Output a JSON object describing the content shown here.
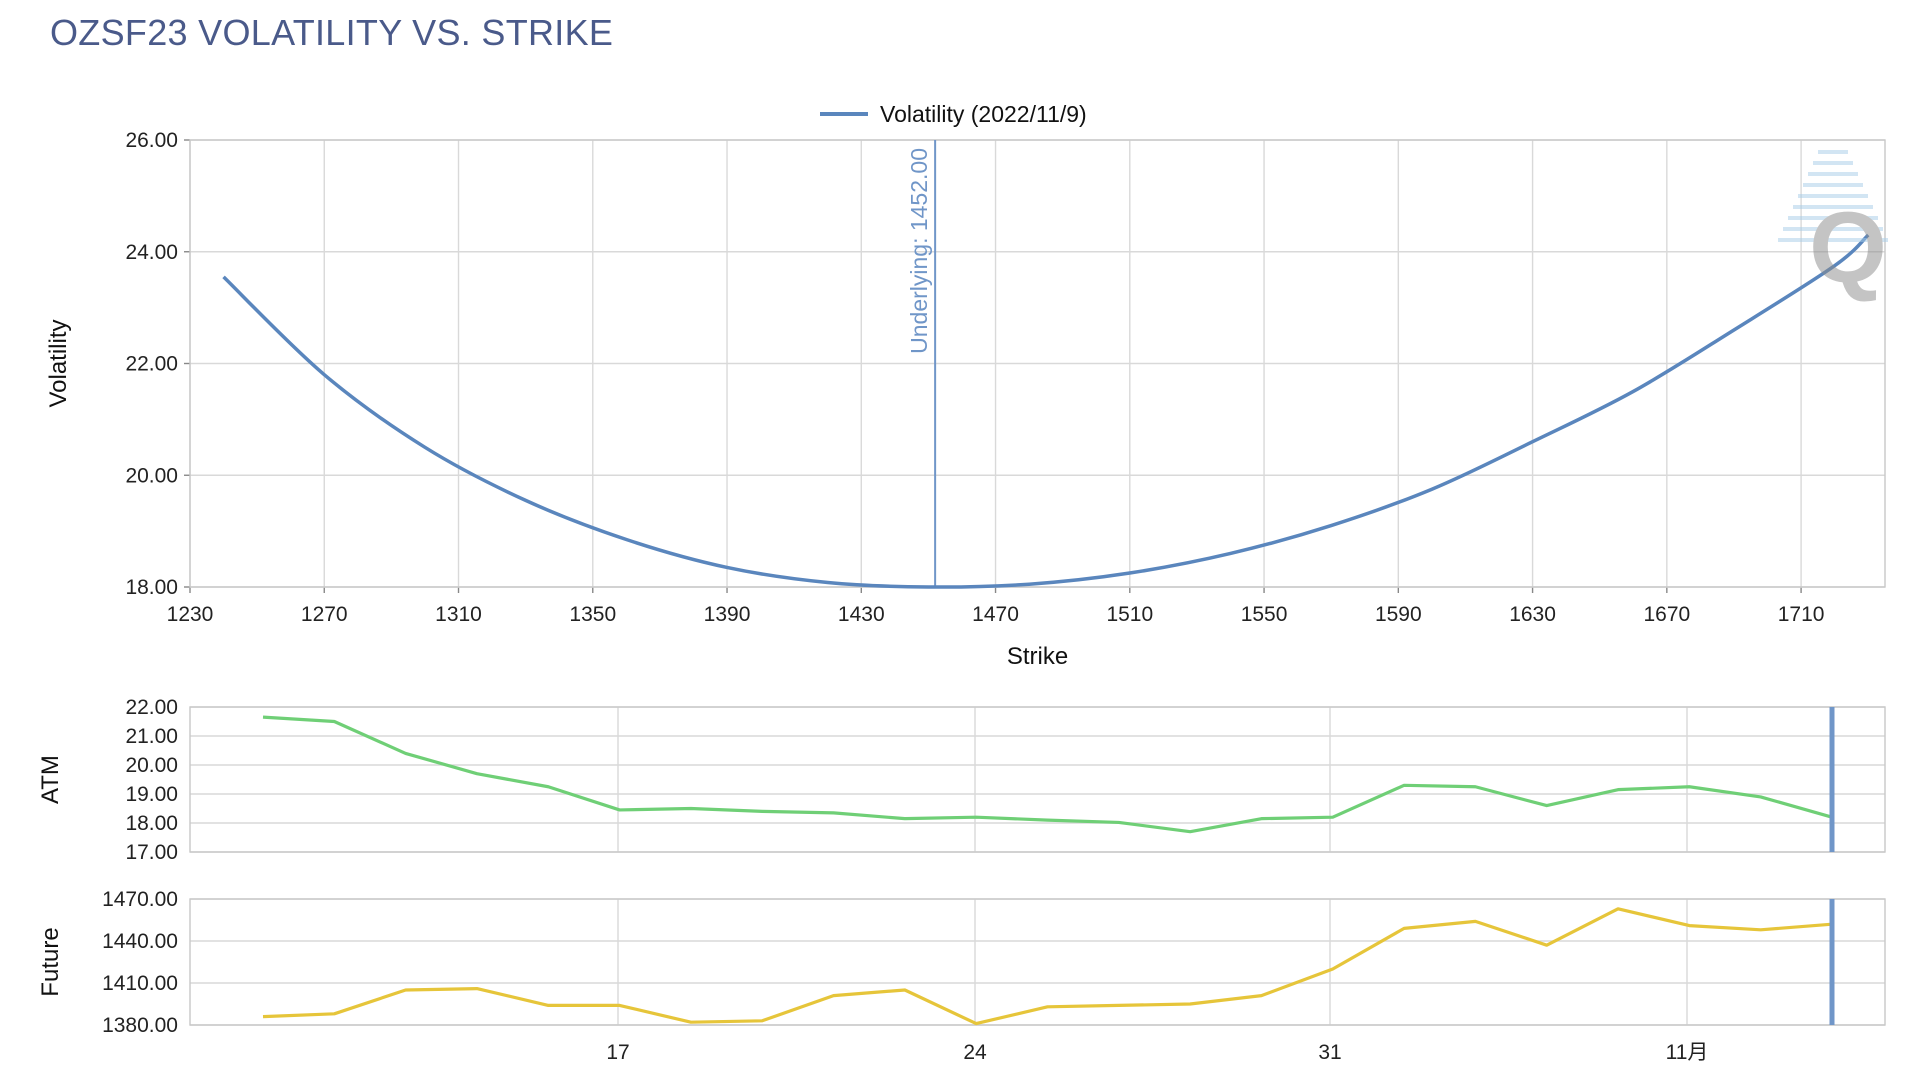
{
  "title": "OZSF23 VOLATILITY VS. STRIKE",
  "colors": {
    "title": "#4a5a8a",
    "volatility": "#5a86bd",
    "atm": "#6fcf76",
    "future": "#e6c53a",
    "marker": "#7096c8"
  },
  "chart_data": [
    {
      "type": "line",
      "name": "volatility-vs-strike",
      "xlabel": "Strike",
      "ylabel": "Volatility",
      "xlim": [
        1230,
        1735
      ],
      "ylim": [
        18,
        26
      ],
      "x_ticks": [
        "1230",
        "1270",
        "1310",
        "1350",
        "1390",
        "1430",
        "1470",
        "1510",
        "1550",
        "1590",
        "1630",
        "1670",
        "1710"
      ],
      "y_ticks": [
        "18.00",
        "20.00",
        "22.00",
        "24.00",
        "26.00"
      ],
      "legend": {
        "label": "Volatility (2022/11/9)",
        "position": "top-center"
      },
      "underlying": {
        "value": 1452,
        "label": "Underlying: 1452.00"
      },
      "series": [
        {
          "name": "Volatility (2022/11/9)",
          "x": [
            1240,
            1270,
            1300,
            1330,
            1360,
            1390,
            1420,
            1450,
            1480,
            1510,
            1540,
            1570,
            1600,
            1630,
            1660,
            1690,
            1720,
            1730
          ],
          "y": [
            23.55,
            21.8,
            20.5,
            19.55,
            18.85,
            18.35,
            18.08,
            18.0,
            18.05,
            18.25,
            18.6,
            19.1,
            19.75,
            20.6,
            21.5,
            22.6,
            23.75,
            24.3
          ]
        }
      ]
    },
    {
      "type": "line",
      "name": "atm",
      "ylabel": "ATM",
      "ylim": [
        17,
        22
      ],
      "y_ticks": [
        "17.00",
        "18.00",
        "19.00",
        "20.00",
        "21.00",
        "22.00"
      ],
      "x": [
        "10/11",
        "10/12",
        "10/13",
        "10/14",
        "10/15",
        "10/17",
        "10/18",
        "10/19",
        "10/20",
        "10/21",
        "10/24",
        "10/25",
        "10/26",
        "10/27",
        "10/28",
        "10/31",
        "11/1",
        "11/2",
        "11/3",
        "11/4",
        "11/7",
        "11/8",
        "11/9"
      ],
      "series": [
        {
          "name": "ATM",
          "values": [
            21.65,
            21.5,
            20.4,
            19.7,
            19.25,
            18.45,
            18.5,
            18.4,
            18.35,
            18.15,
            18.2,
            18.1,
            18.02,
            17.7,
            18.15,
            18.2,
            19.3,
            19.25,
            18.6,
            19.15,
            19.25,
            18.9,
            18.2
          ]
        }
      ]
    },
    {
      "type": "line",
      "name": "future",
      "ylabel": "Future",
      "ylim": [
        1380,
        1470
      ],
      "y_ticks": [
        "1380.00",
        "1410.00",
        "1440.00",
        "1470.00"
      ],
      "x_ticks": [
        "17",
        "24",
        "31",
        "11月"
      ],
      "x": [
        "10/11",
        "10/12",
        "10/13",
        "10/14",
        "10/15",
        "10/17",
        "10/18",
        "10/19",
        "10/20",
        "10/21",
        "10/24",
        "10/25",
        "10/26",
        "10/27",
        "10/28",
        "10/31",
        "11/1",
        "11/2",
        "11/3",
        "11/4",
        "11/7",
        "11/8",
        "11/9"
      ],
      "series": [
        {
          "name": "Future",
          "values": [
            1386,
            1388,
            1405,
            1406,
            1394,
            1394,
            1382,
            1383,
            1401,
            1405,
            1381,
            1393,
            1394,
            1395,
            1401,
            1420,
            1449,
            1454,
            1437,
            1463,
            1451,
            1448,
            1452
          ]
        }
      ]
    }
  ]
}
